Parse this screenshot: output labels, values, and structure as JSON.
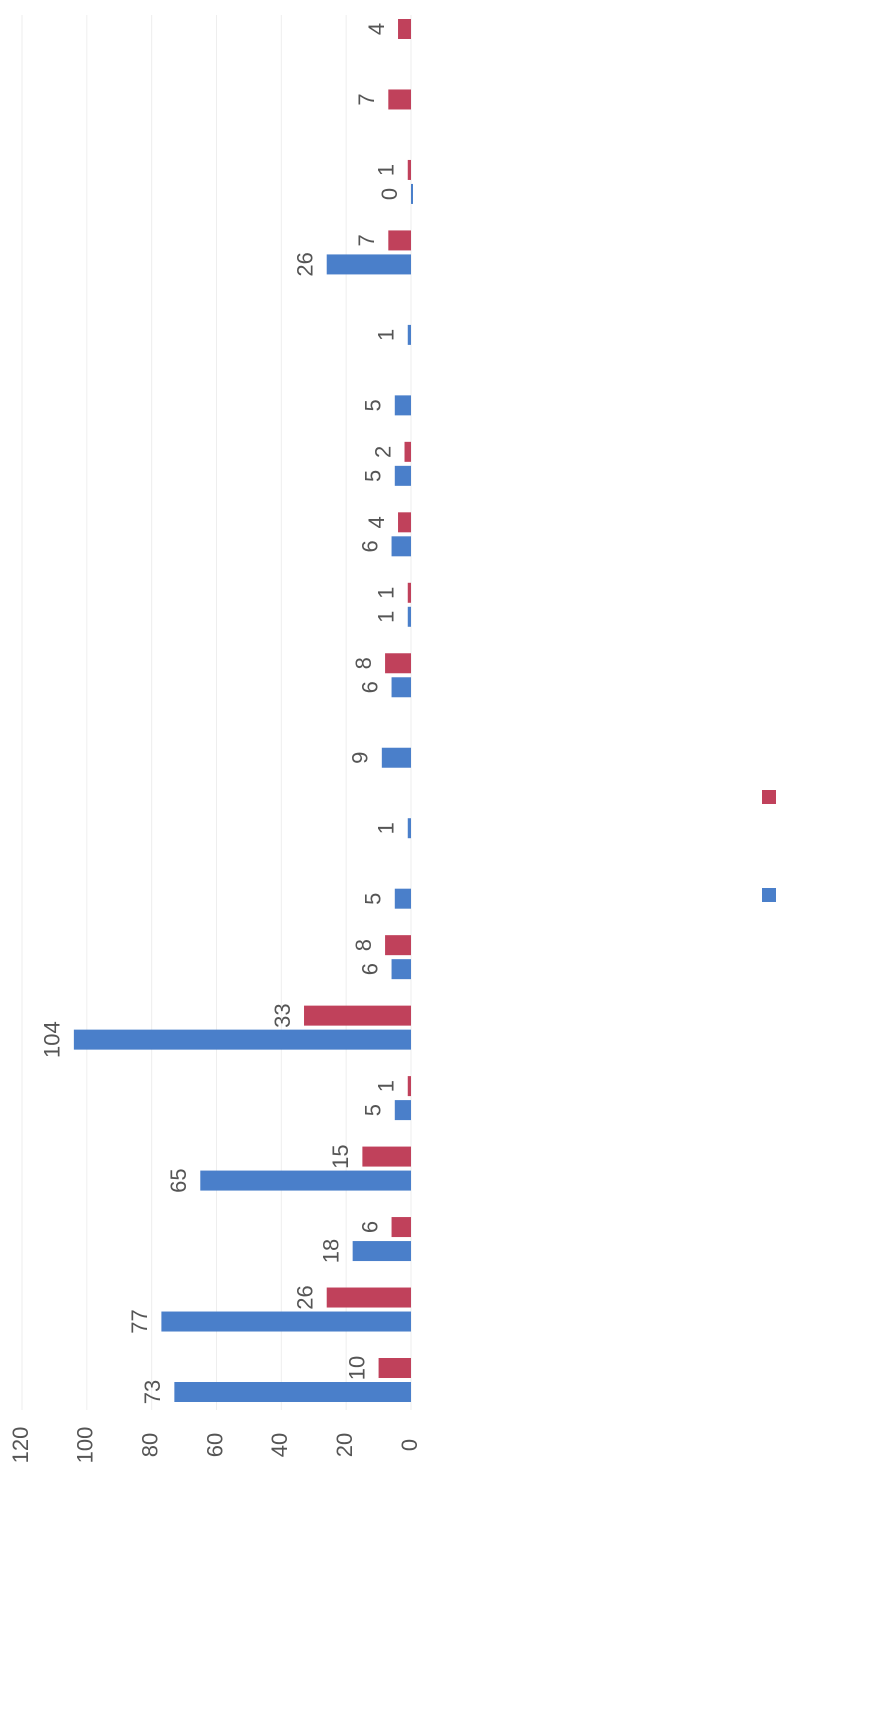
{
  "chart_data": {
    "type": "bar",
    "orientation": "horizontal-rotated",
    "categories": [
      null,
      null,
      null,
      null,
      null,
      null,
      null,
      null,
      null,
      null,
      null,
      null,
      null,
      null,
      null,
      null,
      null,
      null,
      null,
      null
    ],
    "series": [
      {
        "color": "#4a7fca",
        "values": [
          73,
          77,
          18,
          65,
          5,
          104,
          6,
          5,
          1,
          9,
          6,
          1,
          6,
          5,
          5,
          1,
          26,
          0,
          null,
          null
        ]
      },
      {
        "color": "#c0415b",
        "values": [
          10,
          26,
          6,
          15,
          1,
          33,
          8,
          null,
          null,
          null,
          8,
          1,
          4,
          2,
          null,
          null,
          7,
          1,
          7,
          4
        ]
      }
    ],
    "ylim": [
      0,
      120
    ],
    "yticks": [
      0,
      20,
      40,
      60,
      80,
      100,
      120
    ],
    "grid": true,
    "legend": "right"
  }
}
